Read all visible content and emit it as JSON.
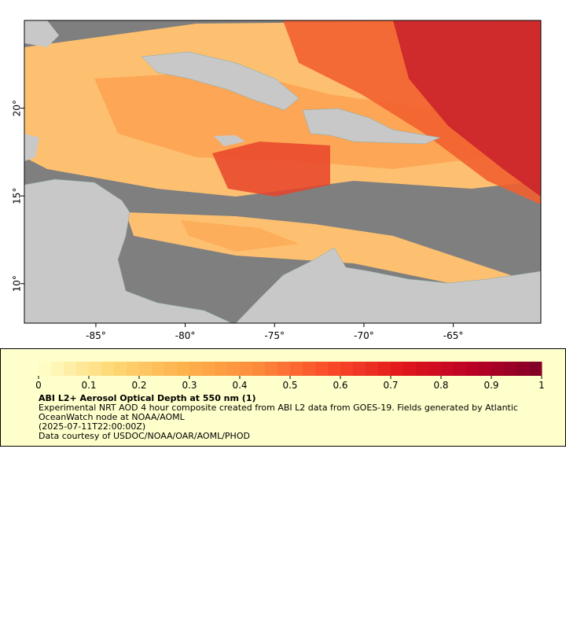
{
  "chart_data": {
    "type": "map",
    "xlim": [
      -89,
      -60.1
    ],
    "ylim": [
      7.75,
      25
    ],
    "xticks": [
      {
        "value": -85,
        "label": "-85°"
      },
      {
        "value": -80,
        "label": "-80°"
      },
      {
        "value": -75,
        "label": "-75°"
      },
      {
        "value": -70,
        "label": "-70°"
      },
      {
        "value": -65,
        "label": "-65°"
      }
    ],
    "yticks": [
      {
        "value": 10,
        "label": "10°"
      },
      {
        "value": 15,
        "label": "15°"
      },
      {
        "value": 20,
        "label": "20°"
      }
    ],
    "colorbar": {
      "clim": [
        0,
        1
      ],
      "ticks": [
        0,
        0.1,
        0.2,
        0.3,
        0.4,
        0.5,
        0.6,
        0.7,
        0.8,
        0.9,
        1
      ],
      "colormap": [
        "#ffffcc",
        "#fed976",
        "#feb24c",
        "#fd8d3c",
        "#fc4e2a",
        "#e31a1c",
        "#bd0026",
        "#800026"
      ]
    },
    "legend": {
      "title": "ABI L2+ Aerosol Optical Depth at 550 nm (1)",
      "description": "Experimental NRT AOD 4 hour composite created from ABI L2 data from GOES-19. Fields generated by Atlantic OceanWatch node at NOAA/AOML",
      "time": "(2025-07-11T22:00:00Z)",
      "credit": "Data courtesy of USDOC/NOAA/OAR/AOML/PHOD"
    }
  }
}
